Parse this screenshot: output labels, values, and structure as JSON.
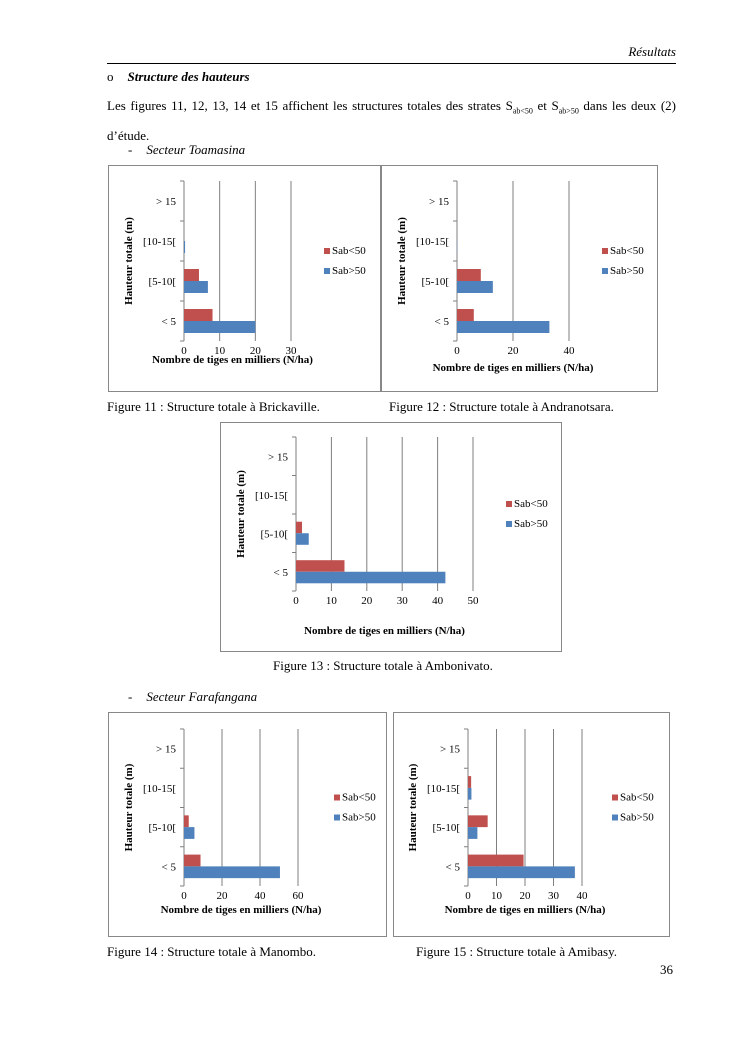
{
  "header": {
    "title": "Résultats"
  },
  "section": {
    "bullet": "o",
    "title": "Structure des hauteurs"
  },
  "paragraph": {
    "part1": "Les figures 11, 12, 13, 14 et 15 affichent les structures totales des strates S",
    "sub1": "ab<50",
    "part2": " et S",
    "sub2": "ab>50",
    "part3": " dans les deux (2) d’étude."
  },
  "sectors": [
    {
      "dash": "-",
      "label": "Secteur Toamasina"
    },
    {
      "dash": "-",
      "label": "Secteur Farafangana"
    }
  ],
  "colors": {
    "Sab<50": "#c0504d",
    "Sab>50": "#4f81bd",
    "grid": "#7f7f7f"
  },
  "chart_data": [
    {
      "type": "bar",
      "orientation": "horizontal",
      "caption": "Figure 11 : Structure totale à Brickaville.",
      "categories": [
        "< 5",
        "[5-10[",
        "[10-15[",
        "> 15"
      ],
      "series": [
        {
          "name": "Sab<50",
          "values": [
            8,
            4.2,
            0,
            0
          ]
        },
        {
          "name": "Sab>50",
          "values": [
            20,
            6.7,
            0.3,
            0
          ]
        }
      ],
      "xlabel": "Nombre de tiges en milliers (N/ha)",
      "ylabel": "Hauteur totale (m)",
      "xlim": [
        0,
        30
      ],
      "xticks": [
        0,
        10,
        20,
        30
      ],
      "grid": true,
      "legend": "right"
    },
    {
      "type": "bar",
      "orientation": "horizontal",
      "caption": "Figure 12 : Structure totale à Andranotsara.",
      "categories": [
        "< 5",
        "[5-10[",
        "[10-15[",
        "> 15"
      ],
      "series": [
        {
          "name": "Sab<50",
          "values": [
            6,
            8.5,
            0,
            0
          ]
        },
        {
          "name": "Sab>50",
          "values": [
            33,
            12.8,
            0.1,
            0
          ]
        }
      ],
      "xlabel": "Nombre de tiges en milliers (N/ha)",
      "ylabel": "Hauteur totale (m)",
      "xlim": [
        0,
        40
      ],
      "xticks": [
        0,
        20,
        40
      ],
      "grid": true,
      "legend": "right"
    },
    {
      "type": "bar",
      "orientation": "horizontal",
      "caption": "Figure 13 : Structure totale à Ambonivato.",
      "categories": [
        "< 5",
        "[5-10[",
        "[10-15[",
        "> 15"
      ],
      "series": [
        {
          "name": "Sab<50",
          "values": [
            13.7,
            1.7,
            0,
            0
          ]
        },
        {
          "name": "Sab>50",
          "values": [
            42.2,
            3.6,
            0,
            0
          ]
        }
      ],
      "xlabel": "Nombre de tiges en milliers (N/ha)",
      "ylabel": "Hauteur totale (m)",
      "xlim": [
        0,
        50
      ],
      "xticks": [
        0,
        10,
        20,
        30,
        40,
        50
      ],
      "grid": true,
      "legend": "right"
    },
    {
      "type": "bar",
      "orientation": "horizontal",
      "caption": "Figure 14 : Structure totale à Manombo.",
      "categories": [
        "< 5",
        "[5-10[",
        "[10-15[",
        "> 15"
      ],
      "series": [
        {
          "name": "Sab<50",
          "values": [
            8.7,
            2.5,
            0,
            0
          ]
        },
        {
          "name": "Sab>50",
          "values": [
            50.5,
            5.5,
            0,
            0
          ]
        }
      ],
      "xlabel": "Nombre de tiges en milliers (N/ha)",
      "ylabel": "Hauteur totale (m)",
      "xlim": [
        0,
        60
      ],
      "xticks": [
        0,
        20,
        40,
        60
      ],
      "grid": true,
      "legend": "right"
    },
    {
      "type": "bar",
      "orientation": "horizontal",
      "caption": "Figure 15 : Structure totale à Amibasy.",
      "categories": [
        "< 5",
        "[5-10[",
        "[10-15[",
        "> 15"
      ],
      "series": [
        {
          "name": "Sab<50",
          "values": [
            19.5,
            6.9,
            1.1,
            0
          ]
        },
        {
          "name": "Sab>50",
          "values": [
            37.5,
            3.3,
            1.2,
            0
          ]
        }
      ],
      "xlabel": "Nombre de tiges en milliers (N/ha)",
      "ylabel": "Hauteur totale (m)",
      "xlim": [
        0,
        40
      ],
      "xticks": [
        0,
        10,
        20,
        30,
        40
      ],
      "grid": true,
      "legend": "right"
    }
  ],
  "page_number": "36"
}
